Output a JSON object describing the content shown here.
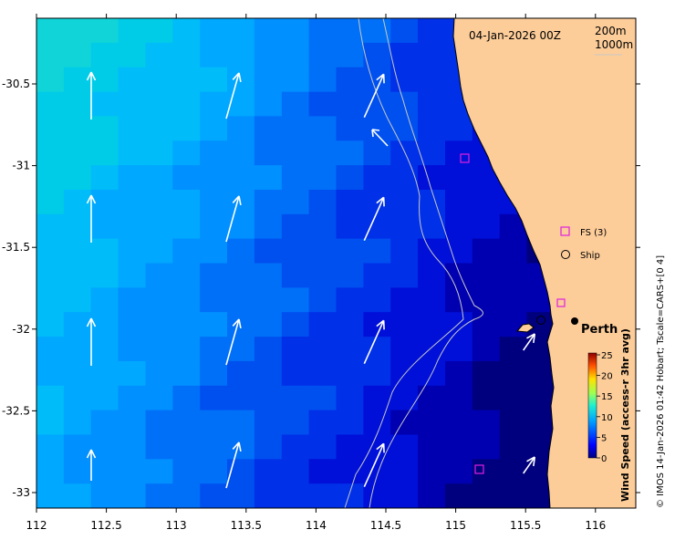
{
  "map": {
    "date_label": "04-Jan-2026 00Z",
    "contour_labels": [
      "200m",
      "1000m"
    ],
    "credit": "© IMOS 14-Jan-2026 01:42 Hobart; Tscale=CARS+[0 4]",
    "place_label": "Perth",
    "x_ticks": [
      "112",
      "112.5",
      "113",
      "113.5",
      "114",
      "114.5",
      "115",
      "115.5",
      "116"
    ],
    "y_ticks": [
      "-30.5",
      "-31",
      "-31.5",
      "-32",
      "-32.5",
      "-33"
    ],
    "legend": {
      "fs": "FS (3)",
      "ship": "Ship"
    },
    "colorbar": {
      "title": "Wind Speed (access-r 3hr avg)",
      "ticks": [
        "25",
        "20",
        "15",
        "10",
        "5",
        "0"
      ],
      "range": [
        0,
        25
      ]
    },
    "colors": {
      "land": "#fccc99",
      "fs_marker": "#e020e0",
      "arrow": "#ffffff",
      "contour": "#c8c8c8"
    }
  }
}
